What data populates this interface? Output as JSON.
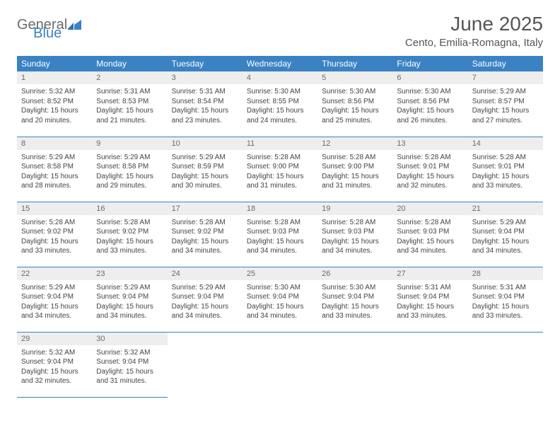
{
  "brand": {
    "general": "General",
    "blue": "Blue"
  },
  "title": "June 2025",
  "location": "Cento, Emilia-Romagna, Italy",
  "colors": {
    "header_bg": "#3a82c4",
    "header_text": "#ffffff",
    "daynum_bg": "#eeeeee",
    "rule": "#3a82c4",
    "body_text": "#444444",
    "title_text": "#555555"
  },
  "weekdays": [
    "Sunday",
    "Monday",
    "Tuesday",
    "Wednesday",
    "Thursday",
    "Friday",
    "Saturday"
  ],
  "days": [
    {
      "n": 1,
      "sunrise": "5:32 AM",
      "sunset": "8:52 PM",
      "daylight": "15 hours and 20 minutes."
    },
    {
      "n": 2,
      "sunrise": "5:31 AM",
      "sunset": "8:53 PM",
      "daylight": "15 hours and 21 minutes."
    },
    {
      "n": 3,
      "sunrise": "5:31 AM",
      "sunset": "8:54 PM",
      "daylight": "15 hours and 23 minutes."
    },
    {
      "n": 4,
      "sunrise": "5:30 AM",
      "sunset": "8:55 PM",
      "daylight": "15 hours and 24 minutes."
    },
    {
      "n": 5,
      "sunrise": "5:30 AM",
      "sunset": "8:56 PM",
      "daylight": "15 hours and 25 minutes."
    },
    {
      "n": 6,
      "sunrise": "5:30 AM",
      "sunset": "8:56 PM",
      "daylight": "15 hours and 26 minutes."
    },
    {
      "n": 7,
      "sunrise": "5:29 AM",
      "sunset": "8:57 PM",
      "daylight": "15 hours and 27 minutes."
    },
    {
      "n": 8,
      "sunrise": "5:29 AM",
      "sunset": "8:58 PM",
      "daylight": "15 hours and 28 minutes."
    },
    {
      "n": 9,
      "sunrise": "5:29 AM",
      "sunset": "8:58 PM",
      "daylight": "15 hours and 29 minutes."
    },
    {
      "n": 10,
      "sunrise": "5:29 AM",
      "sunset": "8:59 PM",
      "daylight": "15 hours and 30 minutes."
    },
    {
      "n": 11,
      "sunrise": "5:28 AM",
      "sunset": "9:00 PM",
      "daylight": "15 hours and 31 minutes."
    },
    {
      "n": 12,
      "sunrise": "5:28 AM",
      "sunset": "9:00 PM",
      "daylight": "15 hours and 31 minutes."
    },
    {
      "n": 13,
      "sunrise": "5:28 AM",
      "sunset": "9:01 PM",
      "daylight": "15 hours and 32 minutes."
    },
    {
      "n": 14,
      "sunrise": "5:28 AM",
      "sunset": "9:01 PM",
      "daylight": "15 hours and 33 minutes."
    },
    {
      "n": 15,
      "sunrise": "5:28 AM",
      "sunset": "9:02 PM",
      "daylight": "15 hours and 33 minutes."
    },
    {
      "n": 16,
      "sunrise": "5:28 AM",
      "sunset": "9:02 PM",
      "daylight": "15 hours and 33 minutes."
    },
    {
      "n": 17,
      "sunrise": "5:28 AM",
      "sunset": "9:02 PM",
      "daylight": "15 hours and 34 minutes."
    },
    {
      "n": 18,
      "sunrise": "5:28 AM",
      "sunset": "9:03 PM",
      "daylight": "15 hours and 34 minutes."
    },
    {
      "n": 19,
      "sunrise": "5:28 AM",
      "sunset": "9:03 PM",
      "daylight": "15 hours and 34 minutes."
    },
    {
      "n": 20,
      "sunrise": "5:28 AM",
      "sunset": "9:03 PM",
      "daylight": "15 hours and 34 minutes."
    },
    {
      "n": 21,
      "sunrise": "5:29 AM",
      "sunset": "9:04 PM",
      "daylight": "15 hours and 34 minutes."
    },
    {
      "n": 22,
      "sunrise": "5:29 AM",
      "sunset": "9:04 PM",
      "daylight": "15 hours and 34 minutes."
    },
    {
      "n": 23,
      "sunrise": "5:29 AM",
      "sunset": "9:04 PM",
      "daylight": "15 hours and 34 minutes."
    },
    {
      "n": 24,
      "sunrise": "5:29 AM",
      "sunset": "9:04 PM",
      "daylight": "15 hours and 34 minutes."
    },
    {
      "n": 25,
      "sunrise": "5:30 AM",
      "sunset": "9:04 PM",
      "daylight": "15 hours and 34 minutes."
    },
    {
      "n": 26,
      "sunrise": "5:30 AM",
      "sunset": "9:04 PM",
      "daylight": "15 hours and 33 minutes."
    },
    {
      "n": 27,
      "sunrise": "5:31 AM",
      "sunset": "9:04 PM",
      "daylight": "15 hours and 33 minutes."
    },
    {
      "n": 28,
      "sunrise": "5:31 AM",
      "sunset": "9:04 PM",
      "daylight": "15 hours and 33 minutes."
    },
    {
      "n": 29,
      "sunrise": "5:32 AM",
      "sunset": "9:04 PM",
      "daylight": "15 hours and 32 minutes."
    },
    {
      "n": 30,
      "sunrise": "5:32 AM",
      "sunset": "9:04 PM",
      "daylight": "15 hours and 31 minutes."
    }
  ],
  "labels": {
    "sunrise": "Sunrise:",
    "sunset": "Sunset:",
    "daylight": "Daylight:"
  },
  "start_weekday": 0,
  "typography": {
    "title_pt": 28,
    "location_pt": 15,
    "th_pt": 12,
    "daynum_pt": 11,
    "cell_pt": 10
  }
}
